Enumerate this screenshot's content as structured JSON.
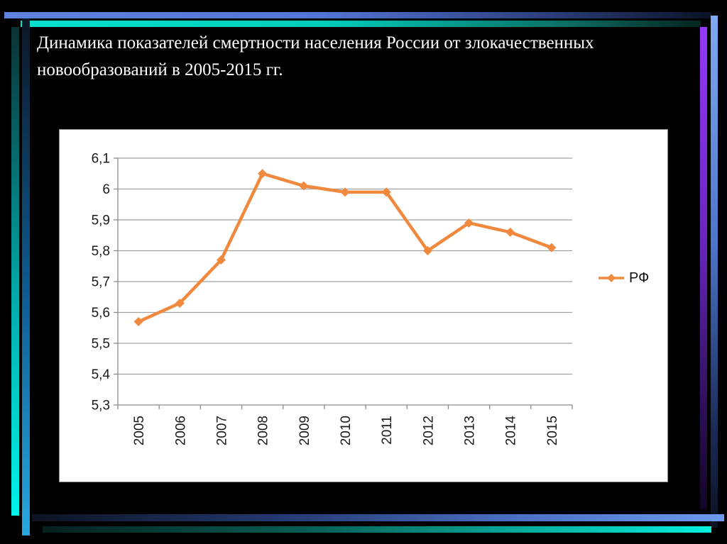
{
  "slide": {
    "title": "Динамика показателей смертности населения России от злокачественных новообразований в 2005-2015 гг."
  },
  "chart_data": {
    "type": "line",
    "title": "",
    "categories": [
      "2005",
      "2006",
      "2007",
      "2008",
      "2009",
      "2010",
      "2011",
      "2012",
      "2013",
      "2014",
      "2015"
    ],
    "series": [
      {
        "name": "РФ",
        "values": [
          5.57,
          5.63,
          5.77,
          6.05,
          6.01,
          5.99,
          5.99,
          5.8,
          5.89,
          5.86,
          5.81
        ],
        "color": "#F0883E",
        "marker": "diamond"
      }
    ],
    "ylim": [
      5.3,
      6.1
    ],
    "ytick_step": 0.1,
    "ytick_labels": [
      "5,3",
      "5,4",
      "5,5",
      "5,6",
      "5,7",
      "5,8",
      "5,9",
      "6",
      "6,1"
    ],
    "xlabel": "",
    "ylabel": "",
    "grid": true,
    "legend_position": "right",
    "x_labels_rotation_deg": -90
  },
  "colors": {
    "slide_background": "#000000",
    "chart_background": "#FFFFFF",
    "series_orange": "#F0883E",
    "gridline": "#A0A0A0",
    "axis": "#8C8C8C",
    "label_text": "#1A1A1A",
    "title_text": "#FFFFFF",
    "accent_blue": "#5E82DD",
    "accent_cyan": "#06E3CE",
    "accent_purple": "#9638FA",
    "accent_light_blue": "#6C9AEE"
  }
}
